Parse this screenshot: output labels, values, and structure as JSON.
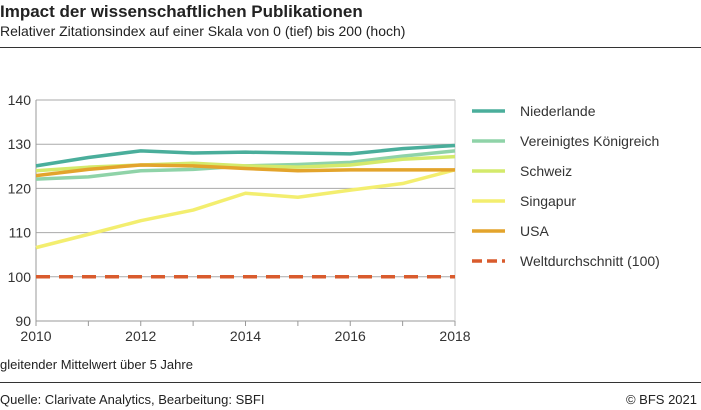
{
  "header": {
    "title": "Impact der wissenschaftlichen Publikationen",
    "subtitle": "Relativer Zitationsindex auf einer Skala von 0 (tief) bis 200 (hoch)"
  },
  "footer": {
    "note": "gleitender Mittelwert über 5 Jahre",
    "source": "Quelle: Clarivate Analytics, Bearbeitung: SBFI",
    "copyright": "© BFS 2021"
  },
  "chart_data": {
    "type": "line",
    "title": "Impact der wissenschaftlichen Publikationen",
    "subtitle": "Relativer Zitationsindex auf einer Skala von 0 (tief) bis 200 (hoch)",
    "x": [
      2010,
      2011,
      2012,
      2013,
      2014,
      2015,
      2016,
      2017,
      2018
    ],
    "xticks": [
      2010,
      2012,
      2014,
      2016,
      2018
    ],
    "yticks": [
      90,
      100,
      110,
      120,
      130,
      140
    ],
    "xlim": [
      2010,
      2018
    ],
    "ylim": [
      90,
      140
    ],
    "grid": true,
    "legend": "right",
    "series": [
      {
        "name": "Niederlande",
        "color": "#4aae9b",
        "values": [
          125.1,
          127.0,
          128.5,
          128.0,
          128.2,
          128.0,
          127.8,
          129.0,
          129.7
        ]
      },
      {
        "name": "Vereinigtes Königreich",
        "color": "#8fd3a8",
        "values": [
          122.1,
          122.6,
          124.0,
          124.3,
          125.1,
          125.4,
          125.9,
          127.3,
          128.5
        ]
      },
      {
        "name": "Schweiz",
        "color": "#d4ea6b",
        "values": [
          124.0,
          124.8,
          125.3,
          125.7,
          125.1,
          124.8,
          125.3,
          126.6,
          127.2
        ]
      },
      {
        "name": "Singapur",
        "color": "#f3ee6f",
        "values": [
          106.6,
          109.6,
          112.7,
          115.1,
          118.9,
          118.0,
          119.6,
          121.1,
          124.2
        ]
      },
      {
        "name": "USA",
        "color": "#e3a42c",
        "values": [
          122.9,
          124.3,
          125.3,
          125.1,
          124.5,
          124.0,
          124.2,
          124.2,
          124.2
        ]
      },
      {
        "name": "Weltdurchschnitt (100)",
        "color": "#d95b2d",
        "dashed": true,
        "values": [
          100,
          100,
          100,
          100,
          100,
          100,
          100,
          100,
          100
        ]
      }
    ]
  }
}
